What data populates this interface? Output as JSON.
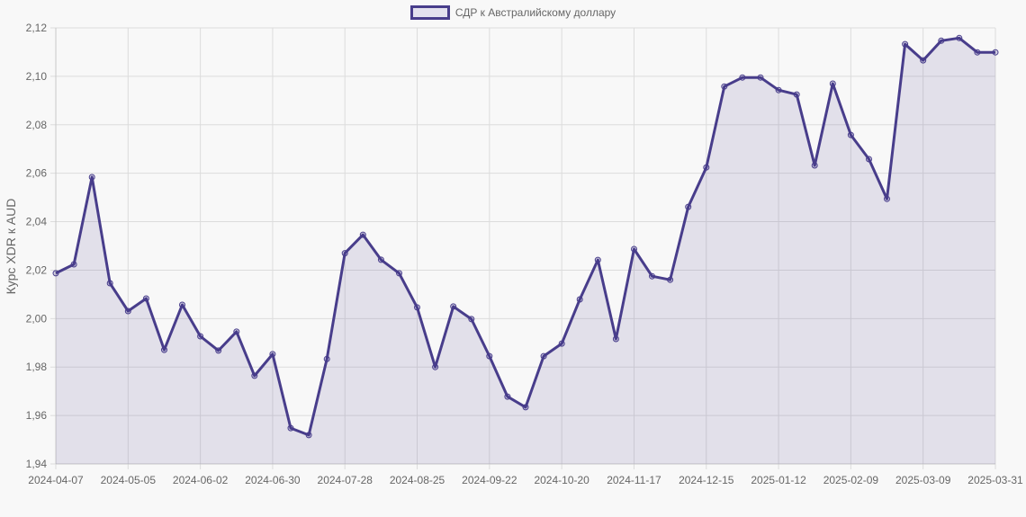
{
  "legend": {
    "label": "СДР к Австралийскому доллару"
  },
  "colors": {
    "line": "#483d8b",
    "fill": "rgba(72,61,139,0.12)",
    "grid": "#dcdcdc",
    "axis_text": "#666666",
    "background": "#f8f8f8"
  },
  "chart_data": {
    "type": "area",
    "title": "",
    "legend": [
      "СДР к Австралийскому доллару"
    ],
    "legend_position": "top",
    "xlabel": "",
    "ylabel": "Курс XDR к AUD",
    "ylim": [
      1.94,
      2.12
    ],
    "yticks": [
      "2,12",
      "2,10",
      "2,08",
      "2,06",
      "2,04",
      "2,02",
      "2,00",
      "1,98",
      "1,96",
      "1,94"
    ],
    "xticks": [
      "2024-04-07",
      "2024-05-05",
      "2024-06-02",
      "2024-06-30",
      "2024-07-28",
      "2024-08-25",
      "2024-09-22",
      "2024-10-20",
      "2024-11-17",
      "2024-12-15",
      "2025-01-12",
      "2025-02-09",
      "2025-03-09",
      "2025-03-31"
    ],
    "grid": true,
    "series": [
      {
        "name": "СДР к Австралийскому доллару",
        "values": [
          2.0187,
          2.0224,
          2.0584,
          2.0146,
          2.0031,
          2.0083,
          1.9871,
          2.0057,
          1.9927,
          1.9868,
          1.9946,
          1.9764,
          1.9853,
          1.9548,
          1.9519,
          1.9833,
          2.027,
          2.0346,
          2.0243,
          2.0187,
          2.0046,
          1.98,
          2.005,
          1.9998,
          1.9845,
          1.9678,
          1.9634,
          1.9845,
          1.9897,
          2.0079,
          2.0242,
          1.9916,
          2.0287,
          2.0175,
          2.016,
          2.0461,
          2.0624,
          2.0958,
          2.0995,
          2.0995,
          2.0943,
          2.0925,
          2.0632,
          2.097,
          2.0758,
          2.0658,
          2.0494,
          2.1133,
          2.1066,
          2.1147,
          2.1158,
          2.1099,
          2.1099
        ]
      }
    ]
  }
}
